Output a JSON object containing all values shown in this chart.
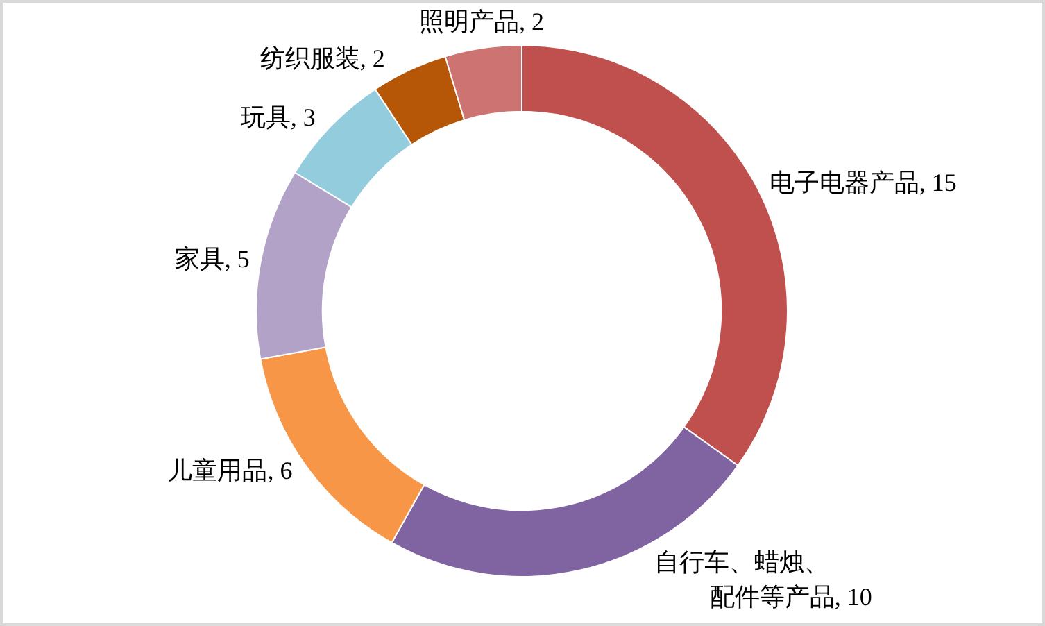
{
  "chart_data": {
    "type": "donut",
    "categories": [
      "电子电器产品",
      "自行车、蜡烛、配件等产品",
      "儿童用品",
      "家具",
      "玩具",
      "纺织服装",
      "照明产品"
    ],
    "values": [
      15,
      10,
      6,
      5,
      3,
      2,
      2
    ],
    "value_labels": [
      ", 15",
      ", 10",
      ", 6",
      ", 5",
      ", 3",
      ", 2",
      ", 2"
    ],
    "colors": [
      "#c0504d",
      "#8064a2",
      "#f79646",
      "#b3a2c7",
      "#93cddd",
      "#b65708",
      "#cd7371"
    ]
  }
}
